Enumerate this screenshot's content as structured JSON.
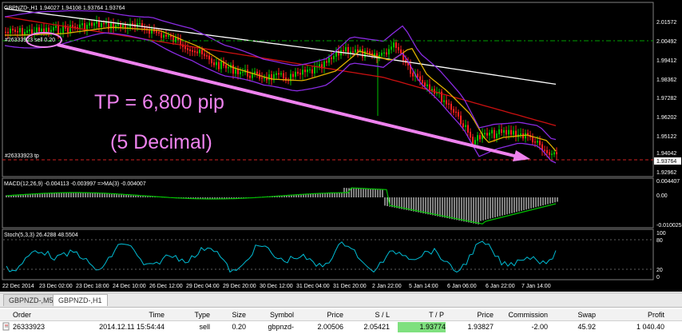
{
  "chart": {
    "symbol_info": "GBPNZD-,H1  1.94027 1.94108 1.93764 1.93764",
    "order_label": "#26333923 sell 0.20",
    "tp_label": "#26333923 tp",
    "annotation_tp": "TP = 6,800 pip",
    "annotation_decimal": "(5 Decimal)",
    "price_axis": [
      "2.01572",
      "2.00492",
      "1.99412",
      "1.98362",
      "1.97282",
      "1.96202",
      "1.95122",
      "1.94042",
      "1.93764",
      "1.92962"
    ],
    "macd_label": "MACD(12,26,9) -0.004113 -0.003997  =>MA(3) -0.004007",
    "macd_axis": [
      "0.004407",
      "0.00",
      "-0.010025"
    ],
    "stoch_label": "Stoch(5,3,3) 26.4288 48.5504",
    "stoch_axis": [
      "100",
      "80",
      "20",
      "0"
    ],
    "time_axis": [
      "22 Dec 2014",
      "23 Dec 02:00",
      "23 Dec 18:00",
      "24 Dec 10:00",
      "26 Dec 12:00",
      "29 Dec 04:00",
      "29 Dec 20:00",
      "30 Dec 12:00",
      "31 Dec 04:00",
      "31 Dec 20:00",
      "2 Jan 22:00",
      "5 Jan 14:00",
      "6 Jan 06:00",
      "6 Jan 22:00",
      "7 Jan 14:00"
    ],
    "colors": {
      "arrow": "#ee82ee",
      "annotation": "#ee82ee",
      "bull": "#00c000",
      "bear": "#ff2020",
      "ma_slow": "#ffffff",
      "ma_mid": "#cc1010",
      "ma_fast": "#e0b000",
      "bollinger": "#8a2be2",
      "order_line": "#00a000",
      "tp_line": "#d02020",
      "macd_hist": "#ffffff",
      "macd_signal": "#00c000",
      "stoch": "#00bcd4"
    }
  },
  "tabs": [
    {
      "label": "GBPNZD-,M5",
      "active": false
    },
    {
      "label": "GBPNZD-,H1",
      "active": true
    }
  ],
  "terminal": {
    "columns": [
      "Order",
      "Time",
      "Type",
      "Size",
      "Symbol",
      "Price",
      "S / L",
      "T / P",
      "Price",
      "Commission",
      "Swap",
      "Profit"
    ],
    "row": {
      "order": "26333923",
      "time": "2014.12.11 15:54:44",
      "type": "sell",
      "size": "0.20",
      "symbol": "gbpnzd-",
      "price": "2.00506",
      "sl": "2.05421",
      "tp": "1.93774",
      "current_price": "1.93827",
      "commission": "-2.00",
      "swap": "45.92",
      "profit": "1 040.40"
    }
  }
}
